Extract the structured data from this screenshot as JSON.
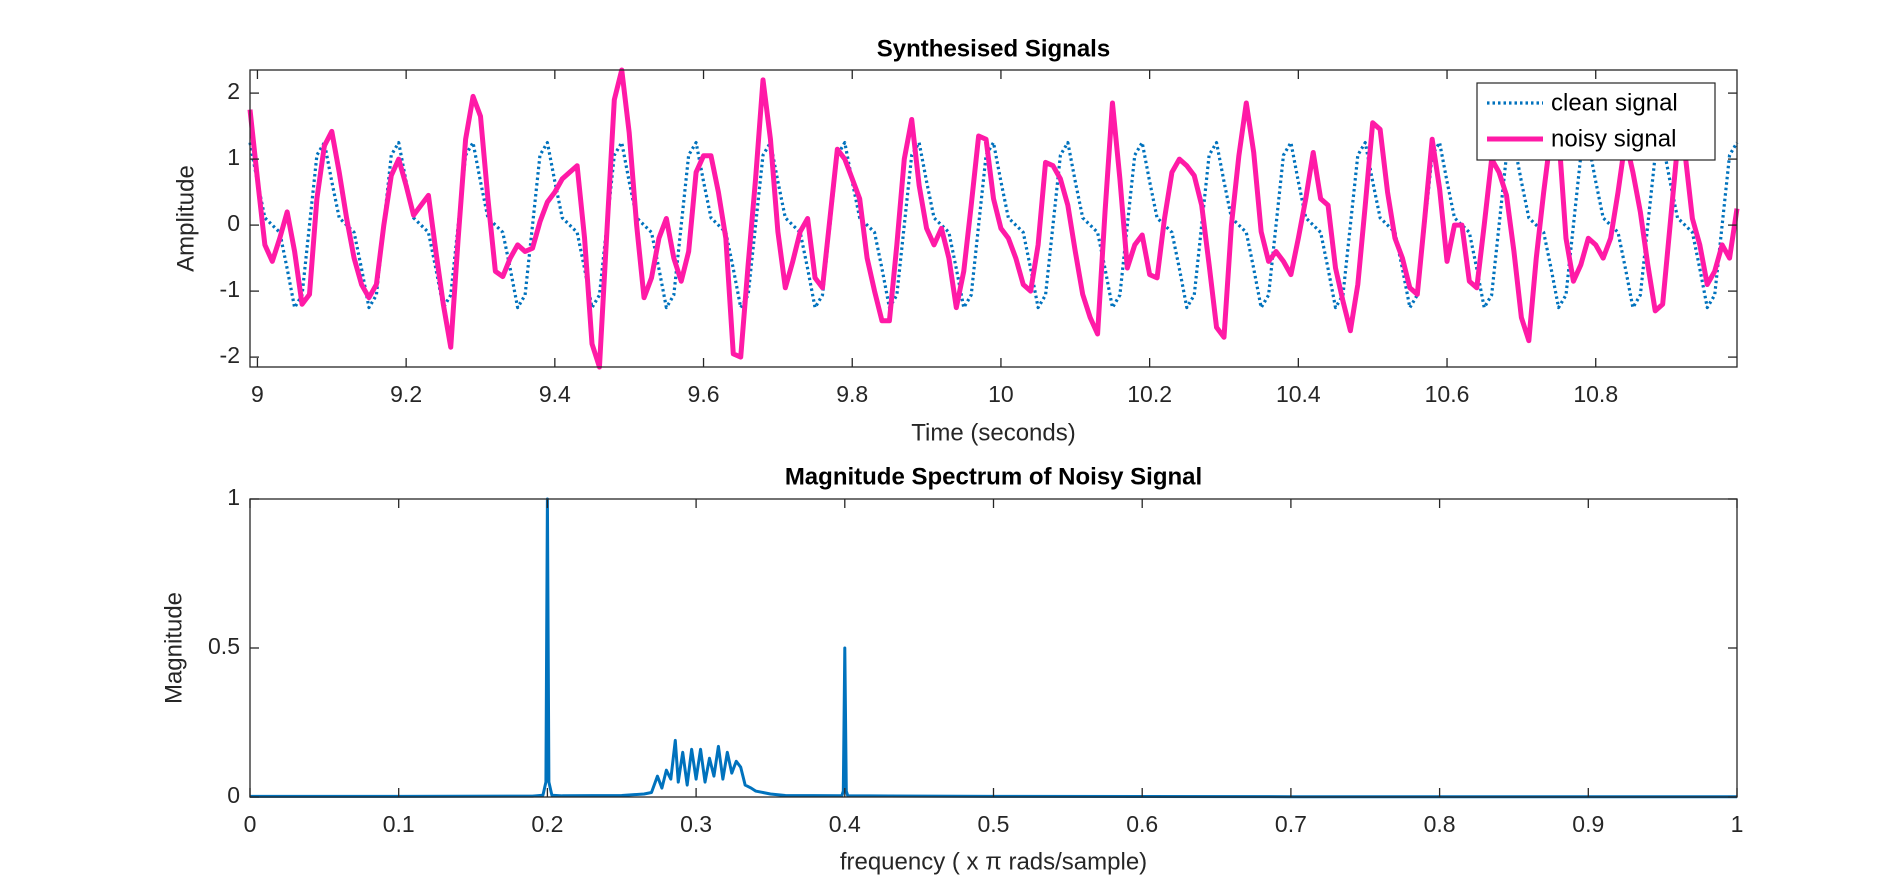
{
  "chart_data": [
    {
      "type": "line",
      "title": "Synthesised Signals",
      "xlabel": "Time (seconds)",
      "ylabel": "Amplitude",
      "x": [
        8.99,
        9,
        9.01,
        9.02,
        9.03,
        9.04,
        9.05,
        9.06,
        9.07,
        9.08,
        9.09,
        9.1,
        9.11,
        9.12,
        9.13,
        9.14,
        9.15,
        9.16,
        9.17,
        9.18,
        9.19,
        9.2,
        9.21,
        9.22,
        9.23,
        9.24,
        9.25,
        9.26,
        9.27,
        9.28,
        9.29,
        9.3,
        9.31,
        9.32,
        9.33,
        9.34,
        9.35,
        9.36,
        9.37,
        9.38,
        9.39,
        9.4,
        9.41,
        9.42,
        9.43,
        9.44,
        9.45,
        9.46,
        9.47,
        9.48,
        9.49,
        9.5,
        9.51,
        9.52,
        9.53,
        9.54,
        9.55,
        9.56,
        9.57,
        9.58,
        9.59,
        9.6,
        9.61,
        9.62,
        9.63,
        9.64,
        9.65,
        9.66,
        9.67,
        9.68,
        9.69,
        9.7,
        9.71,
        9.72,
        9.73,
        9.74,
        9.75,
        9.76,
        9.77,
        9.78,
        9.79,
        9.8,
        9.81,
        9.82,
        9.83,
        9.84,
        9.85,
        9.86,
        9.87,
        9.88,
        9.89,
        9.9,
        9.91,
        9.92,
        9.93,
        9.94,
        9.95,
        9.96,
        9.97,
        9.98,
        9.99,
        10,
        10.01,
        10.02,
        10.03,
        10.04,
        10.05,
        10.06,
        10.07,
        10.08,
        10.09,
        10.1,
        10.11,
        10.12,
        10.13,
        10.14,
        10.15,
        10.16,
        10.17,
        10.18,
        10.19,
        10.2,
        10.21,
        10.22,
        10.23,
        10.24,
        10.25,
        10.26,
        10.27,
        10.28,
        10.29,
        10.3,
        10.31,
        10.32,
        10.33,
        10.34,
        10.35,
        10.36,
        10.37,
        10.38,
        10.39,
        10.4,
        10.41,
        10.42,
        10.43,
        10.44,
        10.45,
        10.46,
        10.47,
        10.48,
        10.49,
        10.5,
        10.51,
        10.52,
        10.53,
        10.54,
        10.55,
        10.56,
        10.57,
        10.58,
        10.59,
        10.6,
        10.61,
        10.62,
        10.63,
        10.64,
        10.65,
        10.66,
        10.67,
        10.68,
        10.69,
        10.7,
        10.71,
        10.72,
        10.73,
        10.74,
        10.75,
        10.76,
        10.77,
        10.78,
        10.79,
        10.8,
        10.81,
        10.82,
        10.83,
        10.84,
        10.85,
        10.86,
        10.87,
        10.88,
        10.89,
        10.9,
        10.91,
        10.92,
        10.93,
        10.94,
        10.95,
        10.96,
        10.97,
        10.98,
        10.99
      ],
      "series": [
        {
          "name": "clean signal",
          "color": "#0072bd",
          "linestyle": "dotted",
          "values": [
            1.25,
            0.66,
            0.11,
            0,
            -0.11,
            -0.66,
            -1.25,
            -1.06,
            0,
            1.06,
            1.25,
            0.66,
            0.11,
            0,
            -0.11,
            -0.66,
            -1.25,
            -1.06,
            0,
            1.06,
            1.25,
            0.66,
            0.11,
            0,
            -0.11,
            -0.66,
            -1.25,
            -1.06,
            0,
            1.06,
            1.25,
            0.66,
            0.11,
            0,
            -0.11,
            -0.66,
            -1.25,
            -1.06,
            0,
            1.06,
            1.25,
            0.66,
            0.11,
            0,
            -0.11,
            -0.66,
            -1.25,
            -1.06,
            0,
            1.06,
            1.25,
            0.66,
            0.11,
            0,
            -0.11,
            -0.66,
            -1.25,
            -1.06,
            0,
            1.06,
            1.25,
            0.66,
            0.11,
            0,
            -0.11,
            -0.66,
            -1.25,
            -1.06,
            0,
            1.06,
            1.25,
            0.66,
            0.11,
            0,
            -0.11,
            -0.66,
            -1.25,
            -1.06,
            0,
            1.06,
            1.25,
            0.66,
            0.11,
            0,
            -0.11,
            -0.66,
            -1.25,
            -1.06,
            0,
            1.06,
            1.25,
            0.66,
            0.11,
            0,
            -0.11,
            -0.66,
            -1.25,
            -1.06,
            0,
            1.06,
            1.25,
            0.66,
            0.11,
            0,
            -0.11,
            -0.66,
            -1.25,
            -1.06,
            0,
            1.06,
            1.25,
            0.66,
            0.11,
            0,
            -0.11,
            -0.66,
            -1.25,
            -1.06,
            0,
            1.06,
            1.25,
            0.66,
            0.11,
            0,
            -0.11,
            -0.66,
            -1.25,
            -1.06,
            0,
            1.06,
            1.25,
            0.66,
            0.11,
            0,
            -0.11,
            -0.66,
            -1.25,
            -1.06,
            0,
            1.06,
            1.25,
            0.66,
            0.11,
            0,
            -0.11,
            -0.66,
            -1.25,
            -1.06,
            0,
            1.06,
            1.25,
            0.66,
            0.11,
            0,
            -0.11,
            -0.66,
            -1.25,
            -1.06,
            0,
            1.06,
            1.25,
            0.66,
            0.11,
            0,
            -0.11,
            -0.66,
            -1.25,
            -1.06,
            0,
            1.06,
            1.25,
            0.66,
            0.11,
            0,
            -0.11,
            -0.66,
            -1.25,
            -1.06,
            0,
            1.06,
            1.25,
            0.66,
            0.11,
            0,
            -0.11,
            -0.66,
            -1.25,
            -1.06,
            0,
            1.06,
            1.25,
            0.66,
            0.11,
            0,
            -0.11,
            -0.66,
            -1.25,
            -1.06,
            0,
            1.06,
            1.25
          ]
        },
        {
          "name": "noisy signal",
          "color": "#ff1aa6",
          "linestyle": "solid",
          "values": [
            1.75,
            0.7,
            -0.3,
            -0.55,
            -0.2,
            0.2,
            -0.4,
            -1.2,
            -1.05,
            0.4,
            1.2,
            1.42,
            0.8,
            0.1,
            -0.5,
            -0.9,
            -1.1,
            -0.9,
            0,
            0.75,
            1,
            0.6,
            0.15,
            0.3,
            0.45,
            -0.4,
            -1.2,
            -1.85,
            -0.2,
            1.3,
            1.95,
            1.65,
            0.4,
            -0.7,
            -0.78,
            -0.5,
            -0.3,
            -0.4,
            -0.35,
            0.05,
            0.35,
            0.5,
            0.7,
            0.8,
            0.9,
            -0.2,
            -1.8,
            -2.15,
            -0.1,
            1.9,
            2.35,
            1.4,
            0,
            -1.1,
            -0.8,
            -0.2,
            0.1,
            -0.5,
            -0.85,
            -0.4,
            0.8,
            1.05,
            1.05,
            0.5,
            -0.2,
            -1.95,
            -2,
            -0.6,
            0.7,
            2.2,
            1.3,
            -0.1,
            -0.95,
            -0.55,
            -0.1,
            0.1,
            -0.8,
            -0.95,
            0.1,
            1.15,
            1,
            0.7,
            0.4,
            -0.5,
            -1,
            -1.45,
            -1.45,
            -0.3,
            1,
            1.6,
            0.6,
            -0.05,
            -0.3,
            -0.05,
            -0.5,
            -1.25,
            -0.7,
            0.3,
            1.35,
            1.3,
            0.4,
            -0.05,
            -0.2,
            -0.5,
            -0.9,
            -1,
            -0.3,
            0.95,
            0.9,
            0.7,
            0.3,
            -0.4,
            -1.05,
            -1.4,
            -1.65,
            0.2,
            1.85,
            0.7,
            -0.65,
            -0.3,
            -0.15,
            -0.75,
            -0.8,
            0.1,
            0.8,
            1,
            0.9,
            0.75,
            0.3,
            -0.6,
            -1.55,
            -1.7,
            0,
            1.05,
            1.85,
            1.1,
            -0.1,
            -0.55,
            -0.4,
            -0.55,
            -0.75,
            -0.2,
            0.4,
            1.1,
            0.4,
            0.3,
            -0.65,
            -1.15,
            -1.6,
            -0.9,
            0.3,
            1.55,
            1.45,
            0.5,
            -0.2,
            -0.5,
            -0.95,
            -1.05,
            0.1,
            1.3,
            0.55,
            -0.55,
            0,
            0,
            -0.85,
            -0.95,
            0,
            1,
            0.8,
            0.45,
            -0.4,
            -1.4,
            -1.75,
            -0.5,
            0.5,
            1.4,
            1.4,
            -0.2,
            -0.85,
            -0.6,
            -0.2,
            -0.3,
            -0.5,
            -0.2,
            0.5,
            1.3,
            0.8,
            0.2,
            -0.6,
            -1.3,
            -1.2,
            0,
            1.2,
            1.1,
            0.1,
            -0.3,
            -0.9,
            -0.7,
            -0.3,
            -0.5,
            0.25
          ]
        }
      ],
      "xlim": [
        8.99,
        10.99
      ],
      "xticks": [
        9,
        9.2,
        9.4,
        9.6,
        9.8,
        10,
        10.2,
        10.4,
        10.6,
        10.8
      ],
      "ylim": [
        -2.15,
        2.35
      ],
      "yticks": [
        -2,
        -1,
        0,
        1,
        2
      ],
      "grid": false,
      "legend": "northeast"
    },
    {
      "type": "line",
      "title": "Magnitude Spectrum of Noisy Signal",
      "xlabel": "frequency ( x π rads/sample)",
      "ylabel": "Magnitude",
      "x": [
        0,
        0.1,
        0.19,
        0.197,
        0.199,
        0.2,
        0.201,
        0.203,
        0.21,
        0.25,
        0.265,
        0.27,
        0.274,
        0.277,
        0.28,
        0.283,
        0.286,
        0.288,
        0.291,
        0.294,
        0.297,
        0.3,
        0.303,
        0.306,
        0.309,
        0.312,
        0.315,
        0.318,
        0.321,
        0.324,
        0.327,
        0.33,
        0.333,
        0.337,
        0.34,
        0.35,
        0.36,
        0.398,
        0.399,
        0.4,
        0.401,
        0.402,
        0.5,
        0.7,
        1
      ],
      "values": [
        0.002,
        0.002,
        0.003,
        0.006,
        0.05,
        1,
        0.05,
        0.006,
        0.004,
        0.005,
        0.01,
        0.015,
        0.07,
        0.03,
        0.09,
        0.06,
        0.19,
        0.05,
        0.15,
        0.04,
        0.16,
        0.06,
        0.16,
        0.05,
        0.13,
        0.07,
        0.17,
        0.06,
        0.15,
        0.08,
        0.12,
        0.1,
        0.04,
        0.03,
        0.02,
        0.01,
        0.005,
        0.004,
        0.02,
        0.5,
        0.02,
        0.004,
        0.002,
        0.001,
        0.001
      ],
      "color": "#0072bd",
      "xlim": [
        0,
        1
      ],
      "xticks": [
        0,
        0.1,
        0.2,
        0.3,
        0.4,
        0.5,
        0.6,
        0.7,
        0.8,
        0.9,
        1
      ],
      "ylim": [
        0,
        1
      ],
      "yticks": [
        0,
        0.5,
        1
      ],
      "grid": false
    }
  ]
}
